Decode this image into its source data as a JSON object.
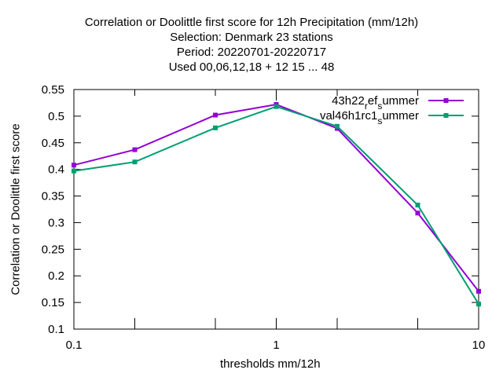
{
  "title_lines": [
    "Correlation or Doolittle first score  for 12h Precipitation (mm/12h)",
    "Selection: Denmark     23 stations",
    "Period: 20220701-20220717",
    "Used  00,06,12,18  + 12 15 ... 48"
  ],
  "chart_data": {
    "type": "line",
    "xscale": "log",
    "xlabel": "thresholds mm/12h",
    "ylabel": "Correlation or Doolittle first score",
    "xlim": [
      0.1,
      10
    ],
    "ylim": [
      0.1,
      0.55
    ],
    "x": [
      0.1,
      0.2,
      0.5,
      1,
      2,
      5,
      10
    ],
    "x_ticks": [
      "0.1",
      "1",
      "10"
    ],
    "y_ticks": [
      "0.1",
      "0.15",
      "0.2",
      "0.25",
      "0.3",
      "0.35",
      "0.4",
      "0.45",
      "0.5",
      "0.55"
    ],
    "legend_position": "top-right",
    "series": [
      {
        "name": "43h22_ref_summer",
        "legend_parts": [
          "43h22",
          "r",
          "ef",
          "s",
          "ummer"
        ],
        "color": "#9400d3",
        "values": [
          0.408,
          0.437,
          0.502,
          0.522,
          0.477,
          0.318,
          0.171
        ]
      },
      {
        "name": "val46h1rc1_summer",
        "legend_parts": [
          "val46h1rc1",
          "s",
          "ummer"
        ],
        "color": "#009e73",
        "values": [
          0.397,
          0.414,
          0.478,
          0.518,
          0.481,
          0.333,
          0.147
        ]
      }
    ]
  }
}
